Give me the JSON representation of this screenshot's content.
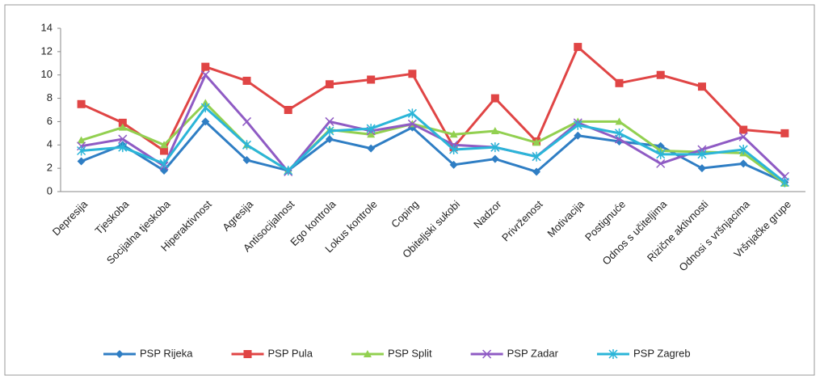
{
  "chart_data": {
    "type": "line",
    "categories": [
      "Depresija",
      "Tjeskoba",
      "Socijalna tjeskoba",
      "Hiperaktivnost",
      "Agresija",
      "Antisocijalnost",
      "Ego kontrola",
      "Lokus kontrole",
      "Coping",
      "Obiteljski sukobi",
      "Nadzor",
      "Privrženost",
      "Motivacija",
      "Postignuće",
      "Odnos s učiteljima",
      "Rizične aktivnosti",
      "Odnosi s vršnjacima",
      "Vršnjačke grupe"
    ],
    "series": [
      {
        "name": "PSP Rijeka",
        "color": "#2f7ec4",
        "marker": "diamond",
        "values": [
          2.6,
          4.0,
          1.8,
          6.0,
          2.7,
          1.8,
          4.5,
          3.7,
          5.5,
          2.3,
          2.8,
          1.7,
          4.8,
          4.3,
          3.9,
          2.0,
          2.4,
          0.8
        ]
      },
      {
        "name": "PSP Pula",
        "color": "#e04545",
        "marker": "square",
        "values": [
          7.5,
          5.9,
          3.5,
          10.7,
          9.5,
          7.0,
          9.2,
          9.6,
          10.1,
          3.8,
          8.0,
          4.3,
          12.4,
          9.3,
          10.0,
          9.0,
          5.3,
          5.0
        ]
      },
      {
        "name": "PSP Split",
        "color": "#92d050",
        "marker": "triangle",
        "values": [
          4.4,
          5.5,
          4.0,
          7.6,
          4.0,
          1.8,
          5.3,
          4.9,
          5.8,
          4.9,
          5.2,
          4.2,
          6.0,
          6.0,
          3.5,
          3.4,
          3.3,
          0.7
        ]
      },
      {
        "name": "PSP Zadar",
        "color": "#8f5bc4",
        "marker": "x",
        "values": [
          3.9,
          4.5,
          2.2,
          10.0,
          6.0,
          1.7,
          6.0,
          5.2,
          5.8,
          4.0,
          3.8,
          3.0,
          5.9,
          4.5,
          2.4,
          3.6,
          4.7,
          1.3
        ]
      },
      {
        "name": "PSP Zagreb",
        "color": "#2bb5d8",
        "marker": "star",
        "values": [
          3.5,
          3.8,
          2.4,
          7.2,
          4.0,
          1.8,
          5.2,
          5.4,
          6.7,
          3.6,
          3.8,
          3.0,
          5.7,
          5.0,
          3.2,
          3.2,
          3.6,
          0.8
        ]
      }
    ],
    "ylim": [
      0,
      14
    ],
    "yticks": [
      0,
      2,
      4,
      6,
      8,
      10,
      12,
      14
    ],
    "grid": false,
    "legend": "bottom"
  }
}
